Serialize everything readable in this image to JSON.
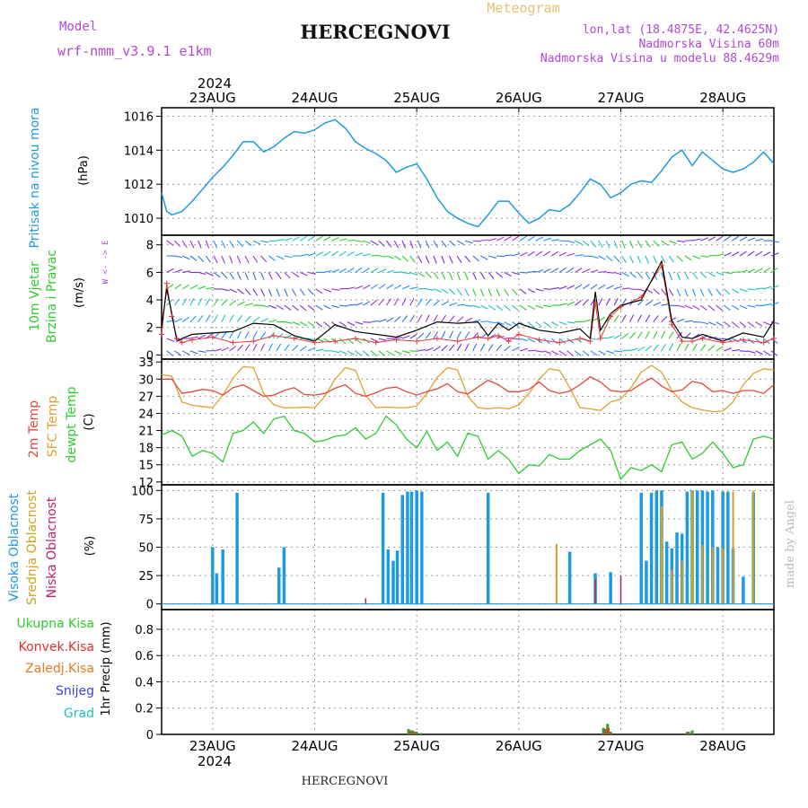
{
  "header": {
    "model_label": "Model",
    "model_name": "wrf-nmm_v3.9.1 e1km",
    "station": "HERCEGNOVI",
    "meteogram": "Meteogram",
    "lonlat": "lon,lat (18.4875E, 42.4625N)",
    "elevation": "Nadmorska Visina 60m",
    "model_elevation": "Nadmorska Visina u modelu 88.4629m"
  },
  "footer": {
    "station": "HERCEGNOVI",
    "watermark": "made by Angel"
  },
  "time_axis": {
    "year": "2024",
    "labels": [
      "23AUG",
      "24AUG",
      "25AUG",
      "26AUG",
      "27AUG",
      "28AUG"
    ]
  },
  "colors": {
    "pressure": "#1e9be0",
    "wind_speed": "#000000",
    "gust": "#e23b3b",
    "t2m": "#e04a3a",
    "sfc": "#e0a030",
    "dewpt": "#2ecc2e",
    "high_cloud": "#1e9be0",
    "mid_cloud": "#d4a020",
    "low_cloud": "#c0206a",
    "precip_total": "#2e9e2e",
    "precip_conv": "#e03030",
    "precip_freez": "#e87a20",
    "snow": "#4040e0",
    "hail": "#20c0c0"
  },
  "chart_data": [
    {
      "type": "line",
      "panel": "pressure",
      "ylabel_main": "Pritisak na nivou mora",
      "unit": "(hPa)",
      "ylim": [
        1009,
        1016.5
      ],
      "yticks": [
        1010,
        1012,
        1014,
        1016
      ],
      "x_days": [
        -0.5,
        -0.45,
        -0.4,
        -0.3,
        -0.2,
        -0.1,
        0,
        0.1,
        0.2,
        0.3,
        0.4,
        0.5,
        0.6,
        0.7,
        0.8,
        0.9,
        1.0,
        1.1,
        1.2,
        1.3,
        1.4,
        1.5,
        1.6,
        1.7,
        1.8,
        1.9,
        2.0,
        2.1,
        2.2,
        2.3,
        2.4,
        2.5,
        2.6,
        2.7,
        2.8,
        2.9,
        3.0,
        3.1,
        3.2,
        3.3,
        3.4,
        3.5,
        3.6,
        3.7,
        3.8,
        3.9,
        4.0,
        4.1,
        4.2,
        4.3,
        4.4,
        4.5,
        4.6,
        4.7,
        4.8,
        4.9,
        5.0,
        5.1,
        5.2,
        5.3,
        5.4,
        5.5
      ],
      "values": [
        1011.5,
        1010.4,
        1010.2,
        1010.4,
        1011.0,
        1011.7,
        1012.4,
        1013.0,
        1013.7,
        1014.5,
        1014.5,
        1013.9,
        1014.2,
        1014.7,
        1015.1,
        1015.0,
        1015.2,
        1015.6,
        1015.8,
        1015.3,
        1014.5,
        1014.1,
        1013.8,
        1013.4,
        1012.7,
        1013.0,
        1013.2,
        1012.3,
        1011.2,
        1010.4,
        1010.0,
        1009.7,
        1009.5,
        1010.2,
        1011.0,
        1011.0,
        1010.3,
        1009.7,
        1010.0,
        1010.5,
        1010.4,
        1010.8,
        1011.5,
        1012.3,
        1012.0,
        1011.2,
        1011.5,
        1012.0,
        1012.2,
        1012.1,
        1012.8,
        1013.6,
        1014.0,
        1013.1,
        1013.9,
        1013.4,
        1012.9,
        1012.7,
        1012.9,
        1013.3,
        1013.9,
        1013.2
      ]
    },
    {
      "type": "line",
      "panel": "wind",
      "ylabel_main": "10m Vjetar",
      "ylabel_sub": "Brzina i Pravac",
      "unit": "(m/s)",
      "compass": "W <- -> E",
      "ylim": [
        -0.3,
        8.7
      ],
      "yticks": [
        0,
        2,
        4,
        6,
        8
      ],
      "x_days": [
        -0.5,
        -0.45,
        -0.4,
        -0.35,
        -0.3,
        -0.2,
        0,
        0.2,
        0.4,
        0.6,
        0.8,
        1.0,
        1.2,
        1.4,
        1.6,
        1.8,
        2.0,
        2.2,
        2.4,
        2.6,
        2.7,
        2.8,
        2.9,
        3.0,
        3.2,
        3.4,
        3.6,
        3.7,
        3.75,
        3.8,
        3.9,
        4.0,
        4.2,
        4.4,
        4.5,
        4.6,
        4.7,
        4.8,
        5.0,
        5.2,
        5.4,
        5.5
      ],
      "speed": [
        2.0,
        4.8,
        3.0,
        1.0,
        1.2,
        1.5,
        1.6,
        1.7,
        2.3,
        2.2,
        1.4,
        1.0,
        2.2,
        1.7,
        1.5,
        1.3,
        1.8,
        2.4,
        2.3,
        2.4,
        1.4,
        2.3,
        1.8,
        2.3,
        1.8,
        1.6,
        1.9,
        1.2,
        4.6,
        1.8,
        3.0,
        3.6,
        4.0,
        6.8,
        2.5,
        1.3,
        1.2,
        1.5,
        1.0,
        1.6,
        1.3,
        2.5
      ],
      "gust": [
        1.5,
        5.2,
        2.8,
        1.2,
        0.9,
        1.1,
        1.3,
        0.9,
        1.0,
        1.4,
        1.2,
        0.9,
        1.0,
        1.2,
        0.9,
        1.1,
        1.0,
        1.2,
        1.0,
        1.3,
        1.2,
        1.4,
        1.0,
        1.5,
        1.1,
        0.9,
        1.2,
        1.0,
        3.8,
        1.2,
        2.8,
        3.5,
        4.2,
        6.5,
        2.2,
        1.0,
        1.0,
        1.2,
        0.9,
        1.1,
        0.9,
        1.2
      ]
    },
    {
      "type": "line",
      "panel": "temperature",
      "ylabel_a": "2m Temp",
      "ylabel_b": "SFC Temp",
      "ylabel_c": "dewpt Temp",
      "unit": "(C)",
      "ylim": [
        11.5,
        33.5
      ],
      "yticks": [
        12,
        15,
        18,
        21,
        24,
        27,
        30,
        33
      ],
      "x_days": [
        -0.5,
        -0.4,
        -0.3,
        -0.2,
        -0.1,
        0,
        0.1,
        0.2,
        0.3,
        0.4,
        0.5,
        0.6,
        0.7,
        0.8,
        0.9,
        1.0,
        1.1,
        1.2,
        1.3,
        1.4,
        1.5,
        1.6,
        1.7,
        1.8,
        1.9,
        2.0,
        2.1,
        2.2,
        2.3,
        2.4,
        2.5,
        2.6,
        2.7,
        2.8,
        2.9,
        3.0,
        3.1,
        3.2,
        3.3,
        3.4,
        3.5,
        3.6,
        3.7,
        3.8,
        3.9,
        4.0,
        4.1,
        4.2,
        4.3,
        4.4,
        4.5,
        4.6,
        4.7,
        4.8,
        4.9,
        5.0,
        5.1,
        5.2,
        5.3,
        5.4,
        5.5
      ],
      "t2m": [
        30.0,
        30.0,
        27.5,
        27.8,
        28.2,
        28.0,
        27.2,
        28.5,
        29.0,
        28.0,
        27.0,
        27.2,
        28.0,
        28.5,
        27.3,
        27.2,
        27.5,
        28.4,
        29.0,
        27.5,
        27.0,
        27.6,
        28.4,
        28.6,
        27.8,
        27.2,
        27.8,
        28.3,
        29.2,
        27.8,
        27.4,
        28.6,
        29.8,
        29.0,
        27.8,
        27.8,
        28.2,
        29.5,
        28.0,
        27.5,
        27.9,
        29.0,
        30.4,
        29.5,
        28.0,
        27.8,
        28.0,
        29.2,
        30.2,
        28.8,
        27.8,
        28.1,
        29.6,
        29.2,
        27.8,
        28.0,
        27.5,
        28.0,
        28.0,
        27.5,
        29.0
      ],
      "sfc": [
        30.8,
        30.5,
        26.0,
        25.4,
        25.2,
        25.0,
        27.2,
        30.2,
        32.2,
        32.0,
        27.5,
        25.5,
        25.0,
        25.0,
        25.1,
        25.0,
        27.0,
        30.0,
        32.0,
        31.5,
        27.2,
        25.0,
        25.1,
        25.0,
        25.0,
        25.3,
        27.5,
        30.3,
        32.0,
        31.6,
        27.0,
        25.0,
        24.8,
        25.0,
        24.8,
        25.5,
        27.5,
        30.0,
        31.8,
        31.5,
        28.5,
        25.0,
        24.8,
        24.5,
        26.0,
        26.5,
        28.5,
        31.2,
        32.4,
        31.2,
        28.0,
        26.0,
        25.0,
        24.6,
        24.3,
        24.4,
        26.0,
        29.0,
        31.0,
        31.8,
        31.6
      ],
      "dewpt": [
        20.2,
        21.0,
        20.0,
        16.5,
        17.5,
        17.0,
        15.5,
        20.5,
        21.0,
        22.5,
        20.5,
        23.0,
        23.5,
        21.0,
        20.5,
        19.0,
        19.3,
        20.0,
        20.2,
        21.5,
        19.5,
        20.5,
        23.5,
        22.0,
        19.5,
        18.0,
        20.8,
        17.5,
        19.0,
        16.5,
        20.5,
        20.0,
        16.0,
        17.5,
        16.0,
        13.5,
        15.0,
        14.8,
        16.8,
        16.0,
        16.0,
        17.5,
        18.5,
        19.5,
        17.5,
        12.5,
        14.5,
        14.0,
        15.0,
        13.8,
        18.5,
        19.0,
        16.0,
        17.0,
        19.0,
        17.0,
        14.5,
        15.0,
        19.5,
        20.0,
        19.5
      ]
    },
    {
      "type": "bar",
      "panel": "cloud",
      "ylabel_a": "Visoka Oblacnost",
      "ylabel_b": "Srednja Oblacnost",
      "ylabel_c": "Niska Oblacnost",
      "unit": "(%)",
      "ylim": [
        -5,
        105
      ],
      "yticks": [
        0,
        25,
        50,
        75,
        100
      ],
      "high_x": [
        0.0,
        0.04,
        0.1,
        0.24,
        0.65,
        0.7,
        1.67,
        1.72,
        1.77,
        1.81,
        1.86,
        1.91,
        1.95,
        2.0,
        2.05,
        2.7,
        3.5,
        3.75,
        3.9,
        4.2,
        4.25,
        4.3,
        4.35,
        4.4,
        4.45,
        4.5,
        4.55,
        4.6,
        4.65,
        4.7,
        4.75,
        4.8,
        4.85,
        4.9,
        4.95,
        5.0,
        5.05,
        5.1,
        5.2,
        5.3
      ],
      "high_v": [
        50,
        27,
        48,
        98,
        32,
        50,
        98,
        48,
        38,
        47,
        96,
        99,
        99,
        100,
        99,
        98,
        46,
        27,
        28,
        98,
        38,
        98,
        100,
        100,
        55,
        49,
        63,
        62,
        99,
        100,
        100,
        100,
        99,
        100,
        50,
        99,
        99,
        49,
        24,
        98
      ],
      "mid_x": [
        3.37,
        4.4,
        4.5,
        4.6,
        4.7,
        4.8,
        4.9,
        5.0,
        5.1,
        5.3
      ],
      "mid_v": [
        53,
        86,
        30,
        38,
        99,
        52,
        50,
        49,
        99,
        100
      ],
      "low_x": [
        1.5,
        3.75,
        4.0
      ],
      "low_v": [
        5,
        22,
        25
      ]
    },
    {
      "type": "bar",
      "panel": "precipitation",
      "ylabel_a": "Ukupna Kisa",
      "ylabel_b": "Konvek.Kisa",
      "ylabel_c": "Zaledj.Kisa",
      "ylabel_d": "Snijeg",
      "ylabel_e": "Grad",
      "unit": "1hr Precip (mm)",
      "ylim": [
        0,
        0.95
      ],
      "yticks": [
        0,
        0.2,
        0.4,
        0.6,
        0.8
      ],
      "total_x": [
        1.92,
        1.96,
        2.0,
        2.04,
        3.83,
        3.87,
        3.9,
        4.65,
        4.7
      ],
      "total_v": [
        0.04,
        0.03,
        0.02,
        0.01,
        0.05,
        0.08,
        0.02,
        0.02,
        0.03
      ],
      "conv_x": [
        1.94,
        1.98,
        3.85,
        3.88,
        4.67
      ],
      "conv_v": [
        0.03,
        0.02,
        0.04,
        0.05,
        0.02
      ]
    }
  ]
}
